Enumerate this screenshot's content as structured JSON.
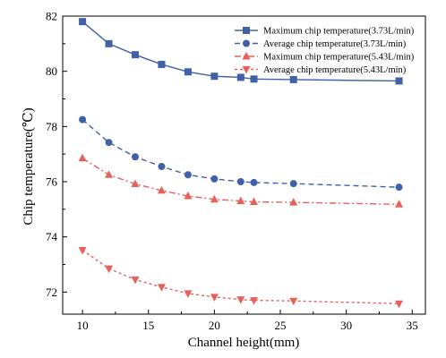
{
  "chart_data": {
    "type": "line",
    "xlabel": "Channel height(mm)",
    "ylabel": "Chip temperature(℃)",
    "xlim": [
      8.5,
      36
    ],
    "ylim": [
      71.2,
      82
    ],
    "xticks": [
      10,
      15,
      20,
      25,
      30,
      35
    ],
    "yticks": [
      72,
      74,
      76,
      78,
      80,
      82
    ],
    "grid": false,
    "legend_position": "top-right",
    "x": [
      10,
      12,
      14,
      16,
      18,
      20,
      22,
      23,
      26,
      34
    ],
    "series": [
      {
        "name": "Maximum chip temperature(3.73L/min)",
        "color": "#4060A8",
        "marker": "square",
        "dash": "solid",
        "values": [
          81.8,
          81.0,
          80.6,
          80.25,
          79.98,
          79.82,
          79.78,
          79.72,
          79.7,
          79.65
        ]
      },
      {
        "name": "Average chip temperature(3.73L/min)",
        "color": "#4060A8",
        "marker": "circle",
        "dash": "dashed",
        "values": [
          78.25,
          77.42,
          76.9,
          76.55,
          76.25,
          76.1,
          76.0,
          75.97,
          75.93,
          75.8
        ]
      },
      {
        "name": "Maximum chip temperature(5.43L/min)",
        "color": "#E8605A",
        "marker": "triangle-up",
        "dash": "dashdot",
        "values": [
          76.85,
          76.25,
          75.92,
          75.68,
          75.48,
          75.36,
          75.3,
          75.27,
          75.25,
          75.18
        ]
      },
      {
        "name": "Average chip temperature(5.43L/min)",
        "color": "#E8605A",
        "marker": "triangle-down",
        "dash": "dotted",
        "values": [
          73.52,
          72.85,
          72.45,
          72.18,
          71.95,
          71.82,
          71.73,
          71.7,
          71.68,
          71.58
        ]
      }
    ]
  }
}
